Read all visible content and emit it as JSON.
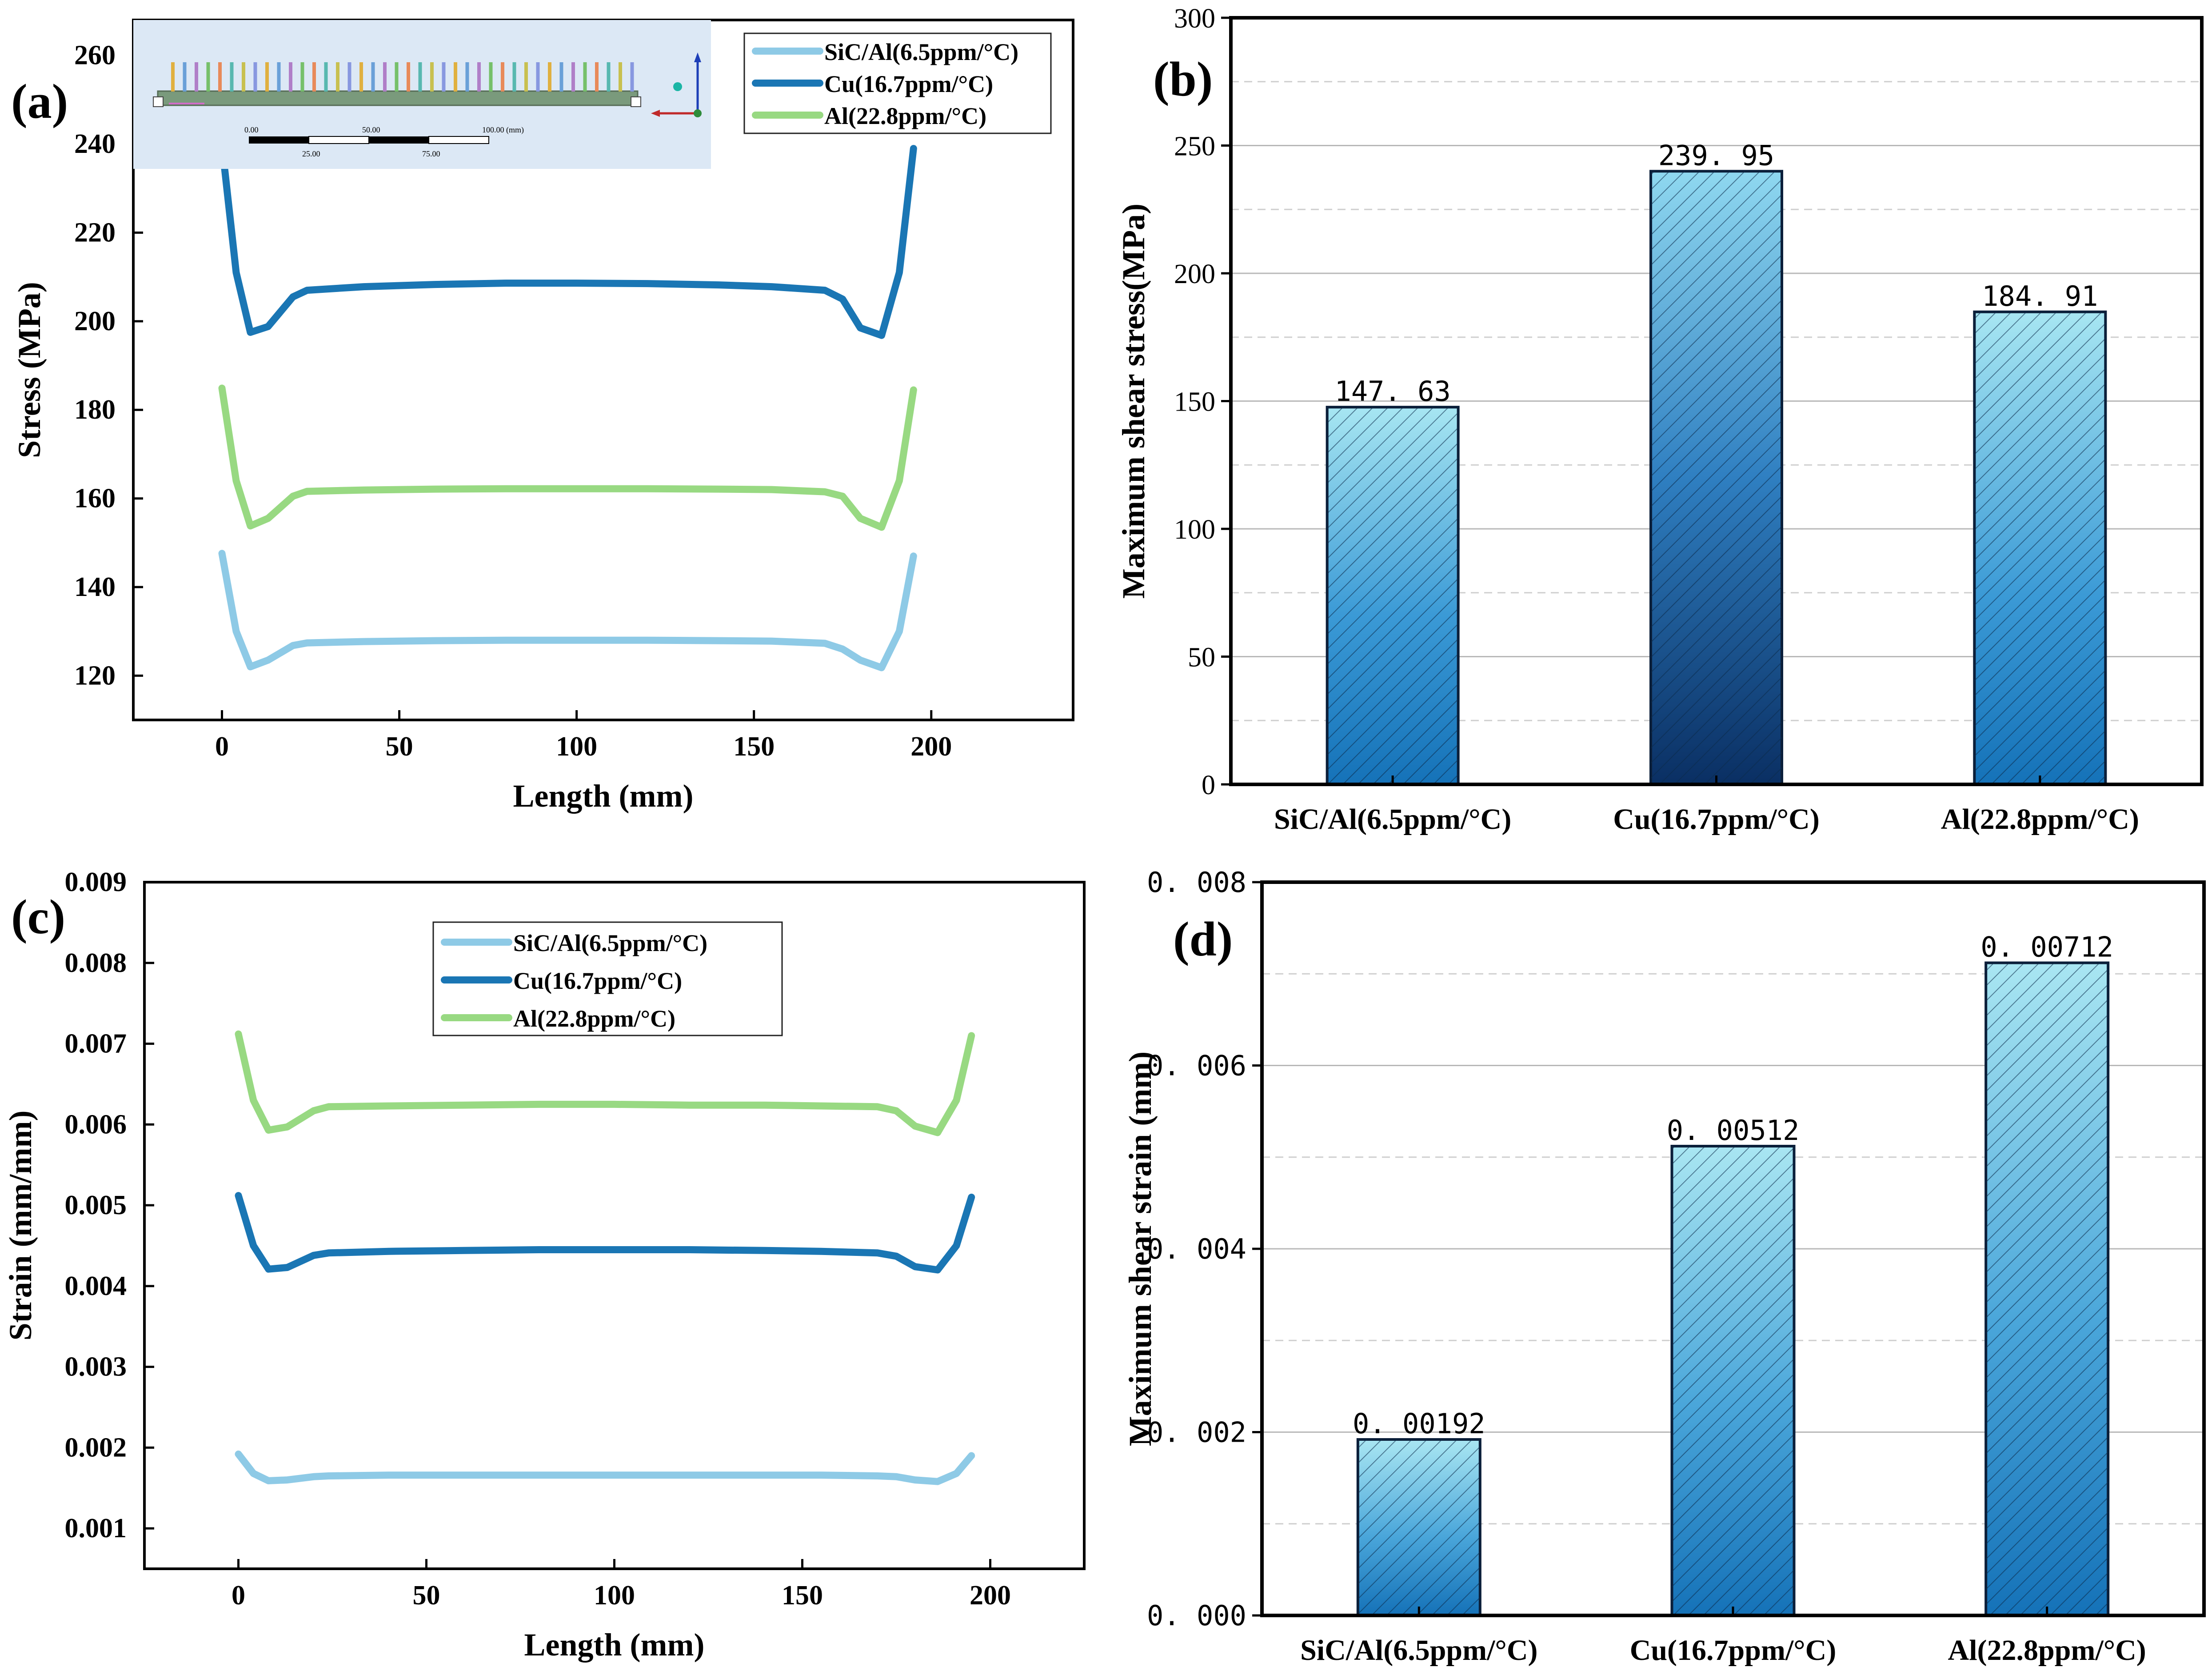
{
  "chart_data": [
    {
      "panel": "a",
      "panel_label": "(a)",
      "type": "line",
      "xlabel": "Length (mm)",
      "ylabel": "Stress (MPa)",
      "xlim": [
        -25,
        240
      ],
      "ylim": [
        110,
        268
      ],
      "xticks": [
        0,
        50,
        100,
        150,
        200
      ],
      "yticks": [
        120,
        140,
        160,
        180,
        200,
        220,
        240,
        260
      ],
      "grid": false,
      "legend": "top-right",
      "inset": {
        "description": "FEM model screenshot of the cold plate with pin fins",
        "scale_labels_top": [
          "0.00",
          "50.00",
          "100.00 (mm)"
        ],
        "scale_labels_bottom": [
          "25.00",
          "75.00"
        ]
      },
      "series": [
        {
          "name": "SiC/Al(6.5ppm/°C)",
          "color": "#8ecae6",
          "x": [
            0,
            4,
            8,
            13,
            20,
            24,
            40,
            60,
            80,
            100,
            120,
            140,
            155,
            170,
            175,
            180,
            186,
            191,
            195
          ],
          "y": [
            147.6,
            130,
            122,
            123.5,
            126.8,
            127.4,
            127.7,
            127.9,
            128,
            128,
            128,
            127.9,
            127.8,
            127.3,
            126,
            123.5,
            121.8,
            130,
            147
          ]
        },
        {
          "name": "Cu(16.7ppm/°C)",
          "color": "#1a76b4",
          "x": [
            0,
            4,
            8,
            13,
            20,
            24,
            40,
            60,
            80,
            100,
            120,
            140,
            155,
            170,
            175,
            180,
            186,
            191,
            195
          ],
          "y": [
            239.9,
            211,
            197.5,
            198.8,
            205.5,
            207,
            207.8,
            208.3,
            208.6,
            208.6,
            208.5,
            208.2,
            207.8,
            207,
            205,
            198.5,
            196.8,
            211,
            239
          ]
        },
        {
          "name": "Al(22.8ppm/°C)",
          "color": "#98d982",
          "x": [
            0,
            4,
            8,
            13,
            20,
            24,
            40,
            60,
            80,
            100,
            120,
            140,
            155,
            170,
            175,
            180,
            186,
            191,
            195
          ],
          "y": [
            184.9,
            164,
            153.8,
            155.5,
            160.5,
            161.6,
            161.9,
            162.1,
            162.2,
            162.2,
            162.2,
            162.1,
            162,
            161.5,
            160.5,
            155.5,
            153.5,
            164,
            184.5
          ]
        }
      ]
    },
    {
      "panel": "b",
      "panel_label": "(b)",
      "type": "bar",
      "xlabel": "",
      "ylabel": "Maximum shear stress(MPa)",
      "ylim": [
        0,
        300
      ],
      "yticks": [
        0,
        50,
        100,
        150,
        200,
        250,
        300
      ],
      "grid": true,
      "categories": [
        "SiC/Al(6.5ppm/°C)",
        "Cu(16.7ppm/°C)",
        "Al(22.8ppm/°C)"
      ],
      "values": [
        147.63,
        239.95,
        184.91
      ],
      "data_labels": [
        "147. 63",
        "239. 95",
        "184. 91"
      ]
    },
    {
      "panel": "c",
      "panel_label": "(c)",
      "type": "line",
      "xlabel": "Length (mm)",
      "ylabel": "Strain (mm/mm)",
      "xlim": [
        -25,
        225
      ],
      "ylim": [
        0.0005,
        0.009
      ],
      "xticks": [
        0,
        50,
        100,
        150,
        200
      ],
      "yticks": [
        0.001,
        0.002,
        0.003,
        0.004,
        0.005,
        0.006,
        0.007,
        0.008,
        0.009
      ],
      "grid": false,
      "legend": "top-center",
      "series": [
        {
          "name": "SiC/Al(6.5ppm/°C)",
          "color": "#8ecae6",
          "x": [
            0,
            4,
            8,
            13,
            20,
            24,
            40,
            60,
            80,
            100,
            120,
            140,
            155,
            170,
            175,
            180,
            186,
            191,
            195
          ],
          "y": [
            0.00192,
            0.00168,
            0.00159,
            0.0016,
            0.00164,
            0.00165,
            0.00166,
            0.00166,
            0.00166,
            0.00166,
            0.00166,
            0.00166,
            0.00166,
            0.00165,
            0.00164,
            0.0016,
            0.00158,
            0.00168,
            0.0019
          ]
        },
        {
          "name": "Cu(16.7ppm/°C)",
          "color": "#1a76b4",
          "x": [
            0,
            4,
            8,
            13,
            20,
            24,
            40,
            60,
            80,
            100,
            120,
            140,
            155,
            170,
            175,
            180,
            186,
            191,
            195
          ],
          "y": [
            0.00512,
            0.0045,
            0.00421,
            0.00423,
            0.00438,
            0.00441,
            0.00443,
            0.00444,
            0.00445,
            0.00445,
            0.00445,
            0.00444,
            0.00443,
            0.00441,
            0.00437,
            0.00424,
            0.0042,
            0.0045,
            0.0051
          ]
        },
        {
          "name": "Al(22.8ppm/°C)",
          "color": "#98d982",
          "x": [
            0,
            4,
            8,
            13,
            20,
            24,
            40,
            60,
            80,
            100,
            120,
            140,
            155,
            170,
            175,
            180,
            186,
            191,
            195
          ],
          "y": [
            0.00712,
            0.0063,
            0.00593,
            0.00597,
            0.00617,
            0.00622,
            0.00623,
            0.00624,
            0.00625,
            0.00625,
            0.00624,
            0.00624,
            0.00623,
            0.00622,
            0.00617,
            0.00598,
            0.0059,
            0.0063,
            0.0071
          ]
        }
      ]
    },
    {
      "panel": "d",
      "panel_label": "(d)",
      "type": "bar",
      "xlabel": "",
      "ylabel": "Maximum shear strain (mm)",
      "ylim": [
        0,
        0.008
      ],
      "yticks": [
        0,
        0.002,
        0.004,
        0.006,
        0.008
      ],
      "ytick_labels": [
        "0. 000",
        "0. 002",
        "0. 004",
        "0. 006",
        "0. 008"
      ],
      "grid": true,
      "categories": [
        "SiC/Al(6.5ppm/°C)",
        "Cu(16.7ppm/°C)",
        "Al(22.8ppm/°C)"
      ],
      "values": [
        0.00192,
        0.00512,
        0.00712
      ],
      "data_labels": [
        "0. 00192",
        "0. 00512",
        "0. 00712"
      ]
    }
  ]
}
